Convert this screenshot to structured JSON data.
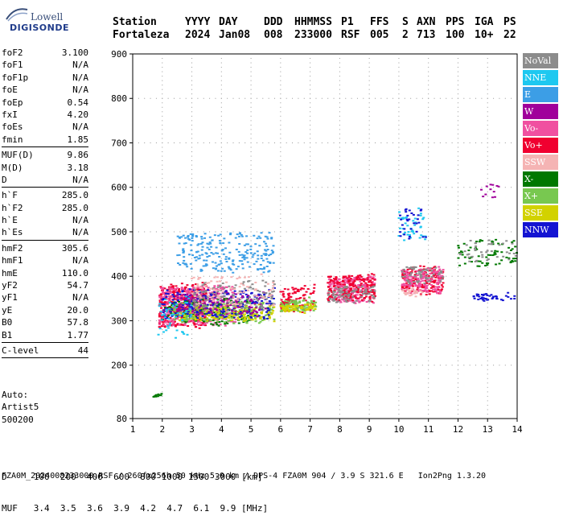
{
  "logo": {
    "line1": "Lowell",
    "line2": "DIGISONDE"
  },
  "header": {
    "labels": [
      "Station",
      "YYYY",
      "DAY",
      "DDD",
      "HHMMSS",
      "P1",
      "FFS",
      "S",
      "AXN",
      "PPS",
      "IGA",
      "PS"
    ],
    "values": [
      "Fortaleza",
      "2024",
      "Jan08",
      "008",
      "233000",
      "RSF",
      "005",
      "2",
      "713",
      "100",
      "10+",
      "22"
    ]
  },
  "params": {
    "group1": [
      {
        "k": "foF2",
        "v": "3.100"
      },
      {
        "k": "foF1",
        "v": "N/A"
      },
      {
        "k": "foF1p",
        "v": "N/A"
      },
      {
        "k": "foE",
        "v": "N/A"
      },
      {
        "k": "foEp",
        "v": "0.54"
      },
      {
        "k": "fxI",
        "v": "4.20"
      },
      {
        "k": "foEs",
        "v": "N/A"
      },
      {
        "k": "fmin",
        "v": "1.85"
      }
    ],
    "group2": [
      {
        "k": "MUF(D)",
        "v": "9.86"
      },
      {
        "k": "M(D)",
        "v": "3.18"
      },
      {
        "k": "D",
        "v": "N/A"
      }
    ],
    "group3": [
      {
        "k": "h`F",
        "v": "285.0"
      },
      {
        "k": "h`F2",
        "v": "285.0"
      },
      {
        "k": "h`E",
        "v": "N/A"
      },
      {
        "k": "h`Es",
        "v": "N/A"
      }
    ],
    "group4": [
      {
        "k": "hmF2",
        "v": "305.6"
      },
      {
        "k": "hmF1",
        "v": "N/A"
      },
      {
        "k": "hmE",
        "v": "110.0"
      },
      {
        "k": "yF2",
        "v": "54.7"
      },
      {
        "k": "yF1",
        "v": "N/A"
      },
      {
        "k": "yE",
        "v": "20.0"
      },
      {
        "k": "B0",
        "v": "57.8"
      },
      {
        "k": "B1",
        "v": "1.77"
      }
    ],
    "group5": [
      {
        "k": "C-level",
        "v": "44"
      }
    ]
  },
  "auto": {
    "line1": "Auto:",
    "line2": "Artist5",
    "line3": "500200"
  },
  "legend": [
    {
      "label": "NoVal",
      "color": "#8c8c8c"
    },
    {
      "label": "NNE",
      "color": "#1ec8f0"
    },
    {
      "label": "E",
      "color": "#3c9ee6"
    },
    {
      "label": "W",
      "color": "#a0009b"
    },
    {
      "label": "Vo-",
      "color": "#f050a0"
    },
    {
      "label": "Vo+",
      "color": "#f00030"
    },
    {
      "label": "SSW",
      "color": "#f5b4b4"
    },
    {
      "label": "X-",
      "color": "#007800"
    },
    {
      "label": "X+",
      "color": "#78c850"
    },
    {
      "label": "SSE",
      "color": "#d2d200"
    },
    {
      "label": "NNW",
      "color": "#1414d2"
    }
  ],
  "bottom": {
    "d_row": "D     100  200  400  600  800 1000 1500 3000 [km]",
    "muf_row": "MUF   3.4  3.5  3.6  3.9  4.2  4.7  6.1  9.9 [MHz]"
  },
  "footer": "FZA0M_2024008233000.RSF / 260fx256h 50 kHz 5.0 km / DPS-4 FZA0M 904 / 3.9 S 321.6 E   Ion2Png 1.3.20",
  "chart_data": {
    "type": "scatter",
    "xlim": [
      1,
      14
    ],
    "ylim": [
      80,
      900
    ],
    "xticks": [
      1,
      2,
      3,
      4,
      5,
      6,
      7,
      8,
      9,
      10,
      11,
      12,
      13,
      14
    ],
    "yticks": [
      80,
      200,
      300,
      400,
      500,
      600,
      700,
      800,
      900
    ],
    "grid": true,
    "legend_placement": "right",
    "clusters": [
      {
        "color": "#f00030",
        "fmin": 1.9,
        "fmax": 3.5,
        "hmin": 285,
        "hmax": 380,
        "n": 420
      },
      {
        "color": "#f050a0",
        "fmin": 1.9,
        "fmax": 4.5,
        "hmin": 290,
        "hmax": 375,
        "n": 380
      },
      {
        "color": "#007800",
        "fmin": 2.0,
        "fmax": 5.0,
        "hmin": 290,
        "hmax": 345,
        "n": 160
      },
      {
        "color": "#78c850",
        "fmin": 2.3,
        "fmax": 5.8,
        "hmin": 295,
        "hmax": 340,
        "n": 200
      },
      {
        "color": "#d2d200",
        "fmin": 2.5,
        "fmax": 5.8,
        "hmin": 300,
        "hmax": 330,
        "n": 160
      },
      {
        "color": "#1414d2",
        "fmin": 2.0,
        "fmax": 5.8,
        "hmin": 305,
        "hmax": 370,
        "n": 220
      },
      {
        "color": "#a0009b",
        "fmin": 2.5,
        "fmax": 5.5,
        "hmin": 310,
        "hmax": 360,
        "n": 130
      },
      {
        "color": "#8c8c8c",
        "fmin": 3.0,
        "fmax": 5.8,
        "hmin": 320,
        "hmax": 390,
        "n": 120
      },
      {
        "color": "#f5b4b4",
        "fmin": 3.0,
        "fmax": 5.8,
        "hmin": 330,
        "hmax": 400,
        "n": 100
      },
      {
        "color": "#3c9ee6",
        "fmin": 2.5,
        "fmax": 5.8,
        "hmin": 410,
        "hmax": 495,
        "n": 230
      },
      {
        "color": "#1ec8f0",
        "fmin": 1.8,
        "fmax": 3.0,
        "hmin": 260,
        "hmax": 350,
        "n": 50
      },
      {
        "color": "#f00030",
        "fmin": 6.0,
        "fmax": 7.2,
        "hmin": 320,
        "hmax": 375,
        "n": 110
      },
      {
        "color": "#78c850",
        "fmin": 6.0,
        "fmax": 7.2,
        "hmin": 320,
        "hmax": 345,
        "n": 80
      },
      {
        "color": "#d2d200",
        "fmin": 6.0,
        "fmax": 7.2,
        "hmin": 320,
        "hmax": 335,
        "n": 60
      },
      {
        "color": "#f050a0",
        "fmin": 7.6,
        "fmax": 9.2,
        "hmin": 340,
        "hmax": 395,
        "n": 220
      },
      {
        "color": "#f00030",
        "fmin": 7.6,
        "fmax": 9.2,
        "hmin": 345,
        "hmax": 400,
        "n": 200
      },
      {
        "color": "#8c8c8c",
        "fmin": 7.6,
        "fmax": 9.2,
        "hmin": 340,
        "hmax": 375,
        "n": 80
      },
      {
        "color": "#f00030",
        "fmin": 10.1,
        "fmax": 11.5,
        "hmin": 360,
        "hmax": 420,
        "n": 170
      },
      {
        "color": "#f050a0",
        "fmin": 10.1,
        "fmax": 11.5,
        "hmin": 360,
        "hmax": 415,
        "n": 150
      },
      {
        "color": "#8c8c8c",
        "fmin": 10.1,
        "fmax": 11.5,
        "hmin": 380,
        "hmax": 420,
        "n": 60
      },
      {
        "color": "#f5b4b4",
        "fmin": 10.1,
        "fmax": 10.8,
        "hmin": 355,
        "hmax": 370,
        "n": 30
      },
      {
        "color": "#1ec8f0",
        "fmin": 10.0,
        "fmax": 11.0,
        "hmin": 480,
        "hmax": 555,
        "n": 40
      },
      {
        "color": "#1414d2",
        "fmin": 10.0,
        "fmax": 11.0,
        "hmin": 485,
        "hmax": 550,
        "n": 30
      },
      {
        "color": "#007800",
        "fmin": 12.0,
        "fmax": 14.0,
        "hmin": 420,
        "hmax": 480,
        "n": 70
      },
      {
        "color": "#8c8c8c",
        "fmin": 12.0,
        "fmax": 14.0,
        "hmin": 430,
        "hmax": 480,
        "n": 40
      },
      {
        "color": "#a0009b",
        "fmin": 12.6,
        "fmax": 13.4,
        "hmin": 570,
        "hmax": 605,
        "n": 12
      },
      {
        "color": "#1414d2",
        "fmin": 12.5,
        "fmax": 14.0,
        "hmin": 345,
        "hmax": 360,
        "n": 40
      },
      {
        "color": "#007800",
        "fmin": 1.7,
        "fmax": 2.0,
        "hmin": 126,
        "hmax": 131,
        "n": 10
      }
    ]
  }
}
